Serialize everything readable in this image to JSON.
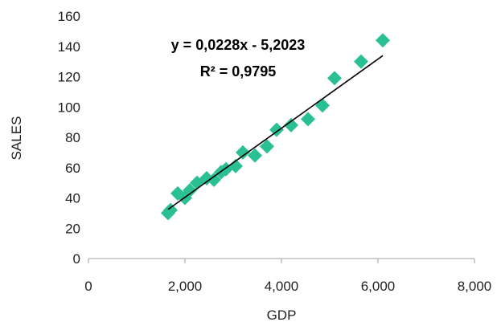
{
  "chart_data": {
    "type": "scatter",
    "xlabel": "GDP",
    "ylabel": "SALES",
    "xlim": [
      0,
      8000
    ],
    "ylim": [
      0,
      160
    ],
    "x_ticks": [
      "0",
      "2,000",
      "4,000",
      "6,000",
      "8,000"
    ],
    "y_ticks": [
      "0",
      "20",
      "40",
      "60",
      "80",
      "100",
      "120",
      "140",
      "160"
    ],
    "grid": false,
    "legend": "none",
    "marker": "diamond",
    "marker_color": "#2bbf94",
    "trendline": {
      "type": "linear",
      "slope": 0.0228,
      "intercept": -5.2023,
      "x_range": [
        1650,
        6100
      ],
      "equation_label": "y = 0,0228x - 5,2023",
      "r2_label": "R² = 0,9795"
    },
    "points": [
      {
        "x": 1650,
        "y": 30
      },
      {
        "x": 1700,
        "y": 32
      },
      {
        "x": 1850,
        "y": 43
      },
      {
        "x": 2000,
        "y": 40
      },
      {
        "x": 2100,
        "y": 45
      },
      {
        "x": 2250,
        "y": 50
      },
      {
        "x": 2450,
        "y": 53
      },
      {
        "x": 2600,
        "y": 52
      },
      {
        "x": 2750,
        "y": 57
      },
      {
        "x": 2850,
        "y": 59
      },
      {
        "x": 3050,
        "y": 61
      },
      {
        "x": 3200,
        "y": 70
      },
      {
        "x": 3450,
        "y": 68
      },
      {
        "x": 3700,
        "y": 74
      },
      {
        "x": 3900,
        "y": 85
      },
      {
        "x": 4200,
        "y": 88
      },
      {
        "x": 4550,
        "y": 92
      },
      {
        "x": 4850,
        "y": 101
      },
      {
        "x": 5100,
        "y": 119
      },
      {
        "x": 5650,
        "y": 130
      },
      {
        "x": 6100,
        "y": 144
      }
    ]
  }
}
